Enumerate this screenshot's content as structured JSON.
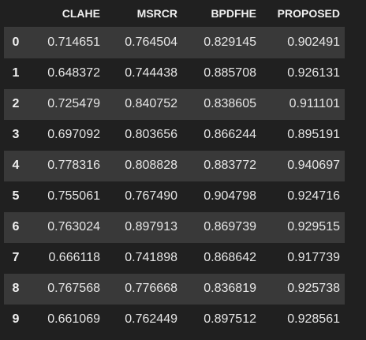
{
  "table": {
    "columns": [
      "CLAHE",
      "MSRCR",
      "BPDFHE",
      "PROPOSED"
    ],
    "rows": [
      {
        "index": "0",
        "values": [
          "0.714651",
          "0.764504",
          "0.829145",
          "0.902491"
        ]
      },
      {
        "index": "1",
        "values": [
          "0.648372",
          "0.744438",
          "0.885708",
          "0.926131"
        ]
      },
      {
        "index": "2",
        "values": [
          "0.725479",
          "0.840752",
          "0.838605",
          "0.911101"
        ]
      },
      {
        "index": "3",
        "values": [
          "0.697092",
          "0.803656",
          "0.866244",
          "0.895191"
        ]
      },
      {
        "index": "4",
        "values": [
          "0.778316",
          "0.808828",
          "0.883772",
          "0.940697"
        ]
      },
      {
        "index": "5",
        "values": [
          "0.755061",
          "0.767490",
          "0.904798",
          "0.924716"
        ]
      },
      {
        "index": "6",
        "values": [
          "0.763024",
          "0.897913",
          "0.869739",
          "0.929515"
        ]
      },
      {
        "index": "7",
        "values": [
          "0.666118",
          "0.741898",
          "0.868642",
          "0.917739"
        ]
      },
      {
        "index": "8",
        "values": [
          "0.767568",
          "0.776668",
          "0.836819",
          "0.925738"
        ]
      },
      {
        "index": "9",
        "values": [
          "0.661069",
          "0.762449",
          "0.897512",
          "0.928561"
        ]
      }
    ]
  }
}
